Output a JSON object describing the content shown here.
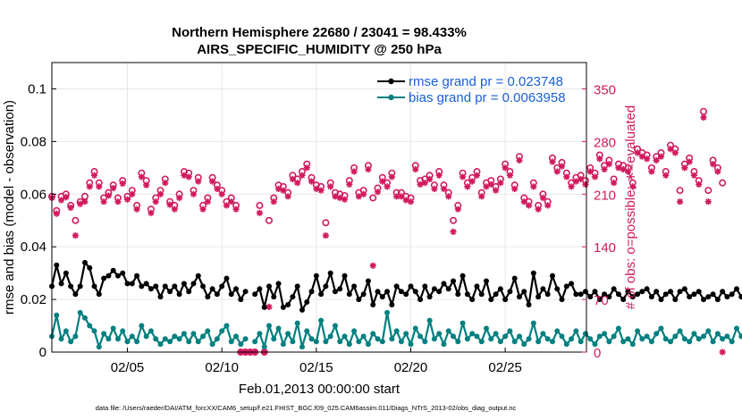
{
  "chart_data": {
    "type": "line",
    "title": "Northern Hemisphere 22680 / 23041 = 98.433%",
    "subtitle": "AIRS_SPECIFIC_HUMIDITY @ 250 hPa",
    "xlabel": "Feb.01,2013 00:00:00 start",
    "ylabel_left": "rmse and bias (model - observation)",
    "ylabel_right": "# of obs: o=possible; ∗=evaluated",
    "footnote": "data file: /Users/raeder/DAI/ATM_forcXX/CAM6_setup/f.e21.FHIST_BGC.f09_025.CAM6assim.011/Diags_NTrS_2013-02/obs_diag_output.nc",
    "xlim_days": [
      0,
      28.3
    ],
    "x_ticks": [
      {
        "day": 4,
        "label": "02/05"
      },
      {
        "day": 9,
        "label": "02/10"
      },
      {
        "day": 14,
        "label": "02/15"
      },
      {
        "day": 19,
        "label": "02/20"
      },
      {
        "day": 24,
        "label": "02/25"
      }
    ],
    "ylim_left": [
      0,
      0.11
    ],
    "y_ticks_left": [
      {
        "value": 0,
        "label": "0"
      },
      {
        "value": 0.02,
        "label": "0.02"
      },
      {
        "value": 0.04,
        "label": "0.04"
      },
      {
        "value": 0.06,
        "label": "0.06"
      },
      {
        "value": 0.08,
        "label": "0.08"
      },
      {
        "value": 0.1,
        "label": "0.1"
      }
    ],
    "ylim_right": [
      0,
      385
    ],
    "y_ticks_right": [
      {
        "value": 0,
        "label": "0"
      },
      {
        "value": 70,
        "label": "70"
      },
      {
        "value": 140,
        "label": "140"
      },
      {
        "value": 210,
        "label": "210"
      },
      {
        "value": 280,
        "label": "280"
      },
      {
        "value": 350,
        "label": "350"
      }
    ],
    "grid": true,
    "legend_position": "top-right",
    "colors": {
      "rmse": "#000000",
      "bias": "#00807f",
      "obs": "#d11a5e",
      "legend_text": "#1a5fd6",
      "grid": "#e6e6e6"
    },
    "series": [
      {
        "name": "rmse grand pr = 0.023748",
        "key": "rmse",
        "axis": "left",
        "segments": [
          {
            "x0": 0.0,
            "dx": 0.25,
            "values": [
              0.025,
              0.033,
              0.026,
              0.03,
              0.025,
              0.022,
              0.025,
              0.034,
              0.032,
              0.025,
              0.022,
              0.028,
              0.029,
              0.031,
              0.029,
              0.03,
              0.026,
              0.026,
              0.029,
              0.025,
              0.026,
              0.024,
              0.025,
              0.021,
              0.025,
              0.023,
              0.025,
              0.022,
              0.026,
              0.023,
              0.026,
              0.029,
              0.025,
              0.021,
              0.024,
              0.022,
              0.025,
              0.028,
              0.022,
              0.024,
              0.02,
              0.023
            ]
          },
          {
            "x0": 10.75,
            "dx": 0.25,
            "values": [
              0.022,
              0.024,
              0.017,
              0.025,
              0.021,
              0.026,
              0.017,
              0.018,
              0.021,
              0.025,
              0.016,
              0.019,
              0.023,
              0.029,
              0.022,
              0.025,
              0.03,
              0.023,
              0.024,
              0.029,
              0.022,
              0.025,
              0.02,
              0.022,
              0.027,
              0.018,
              0.023,
              0.021,
              0.023,
              0.018,
              0.025,
              0.023,
              0.022,
              0.025,
              0.023,
              0.02,
              0.025,
              0.021,
              0.024,
              0.023,
              0.026,
              0.024,
              0.027,
              0.022,
              0.029,
              0.022,
              0.02,
              0.025,
              0.022,
              0.027,
              0.02,
              0.022,
              0.024,
              0.02,
              0.023,
              0.028,
              0.021,
              0.023,
              0.018,
              0.03,
              0.021,
              0.024,
              0.022,
              0.029,
              0.024,
              0.02,
              0.025,
              0.026,
              0.022,
              0.022,
              0.023,
              0.021,
              0.023,
              0.02,
              0.022,
              0.021,
              0.024,
              0.022,
              0.02,
              0.023,
              0.021,
              0.022,
              0.023,
              0.024,
              0.021,
              0.023,
              0.02,
              0.022,
              0.023,
              0.02,
              0.023,
              0.024,
              0.021,
              0.022,
              0.023,
              0.02,
              0.021,
              0.022,
              0.02,
              0.023,
              0.021,
              0.022,
              0.024,
              0.021,
              0.023,
              0.022
            ]
          }
        ]
      },
      {
        "name": "bias grand pr = 0.0063958",
        "key": "bias",
        "axis": "left",
        "segments": [
          {
            "x0": 0.0,
            "dx": 0.25,
            "values": [
              0.006,
              0.014,
              0.005,
              0.008,
              0.004,
              0.006,
              0.015,
              0.013,
              0.01,
              0.008,
              0.002,
              0.007,
              0.005,
              0.009,
              0.005,
              0.008,
              0.004,
              0.006,
              0.004,
              0.01,
              0.006,
              0.008,
              0.005,
              0.003,
              0.005,
              0.004,
              0.006,
              0.005,
              0.007,
              0.004,
              0.007,
              0.004,
              0.006,
              0.008,
              0.003,
              0.005,
              0.008,
              0.01,
              0.004,
              0.006,
              0.003,
              0.005
            ]
          },
          {
            "x0": 10.75,
            "dx": 0.25,
            "values": [
              0.004,
              0.007,
              0.002,
              0.01,
              0.005,
              0.009,
              0.003,
              0.007,
              0.004,
              0.011,
              0.002,
              0.008,
              0.005,
              0.004,
              0.012,
              0.004,
              0.006,
              0.01,
              0.004,
              0.006,
              0.003,
              0.008,
              0.004,
              0.006,
              0.003,
              0.007,
              0.005,
              0.004,
              0.015,
              0.005,
              0.008,
              0.004,
              0.007,
              0.003,
              0.009,
              0.006,
              0.004,
              0.012,
              0.005,
              0.007,
              0.003,
              0.008,
              0.006,
              0.004,
              0.011,
              0.005,
              0.007,
              0.006,
              0.004,
              0.009,
              0.005,
              0.007,
              0.004,
              0.006,
              0.008,
              0.004,
              0.006,
              0.003,
              0.005,
              0.011,
              0.004,
              0.007,
              0.005,
              0.004,
              0.008,
              0.006,
              0.003,
              0.005,
              0.008,
              0.004,
              0.007,
              0.005,
              0.003,
              0.006,
              0.007,
              0.004,
              0.006,
              0.009,
              0.004,
              0.005,
              0.003,
              0.008,
              0.005,
              0.006,
              0.004,
              0.007,
              0.009,
              0.005,
              0.004,
              0.006,
              0.008,
              0.005,
              0.004,
              0.007,
              0.005,
              0.006,
              0.008,
              0.004,
              0.007,
              0.005,
              0.006,
              0.004,
              0.009,
              0.006,
              0.004,
              0.003
            ]
          }
        ]
      },
      {
        "name": "obs possible",
        "key": "possible",
        "axis": "right",
        "marker": "circle",
        "x0": 0.0,
        "dx": 0.25,
        "values": [
          207,
          188,
          207,
          210,
          195,
          175,
          200,
          207,
          225,
          240,
          225,
          205,
          212,
          222,
          205,
          228,
          207,
          215,
          195,
          238,
          228,
          190,
          205,
          215,
          230,
          200,
          195,
          210,
          240,
          238,
          215,
          232,
          195,
          205,
          232,
          222,
          215,
          200,
          205,
          195,
          0,
          0,
          0,
          0,
          195,
          0,
          175,
          205,
          222,
          220,
          212,
          235,
          230,
          240,
          250,
          232,
          222,
          220,
          172,
          225,
          212,
          210,
          208,
          228,
          245,
          212,
          215,
          248,
          205,
          218,
          232,
          225,
          238,
          212,
          212,
          207,
          205,
          248,
          228,
          230,
          235,
          222,
          240,
          222,
          212,
          175,
          195,
          238,
          225,
          232,
          240,
          212,
          225,
          228,
          220,
          230,
          250,
          240,
          222,
          260,
          205,
          200,
          225,
          195,
          210,
          200,
          258,
          245,
          252,
          238,
          225,
          232,
          235,
          228,
          245,
          238,
          262,
          248,
          255,
          230,
          250,
          248,
          245,
          225,
          270,
          265,
          262,
          245,
          260,
          265,
          240,
          275,
          270,
          215,
          250,
          258,
          240,
          228,
          320,
          215,
          255,
          245,
          225
        ]
      },
      {
        "name": "obs evaluated",
        "key": "evaluated",
        "axis": "right",
        "marker": "asterisk",
        "x0": 0.0,
        "dx": 0.25,
        "values": [
          205,
          184,
          202,
          206,
          192,
          155,
          197,
          200,
          220,
          235,
          220,
          200,
          208,
          218,
          200,
          224,
          203,
          210,
          190,
          233,
          222,
          185,
          200,
          210,
          225,
          196,
          190,
          205,
          235,
          233,
          210,
          227,
          190,
          200,
          227,
          217,
          210,
          195,
          200,
          190,
          0,
          0,
          0,
          0,
          185,
          0,
          60,
          200,
          217,
          215,
          207,
          230,
          225,
          235,
          245,
          227,
          217,
          215,
          155,
          220,
          207,
          205,
          203,
          223,
          240,
          207,
          210,
          243,
          115,
          213,
          227,
          220,
          233,
          207,
          207,
          202,
          200,
          243,
          223,
          225,
          230,
          217,
          235,
          217,
          207,
          160,
          190,
          233,
          220,
          227,
          235,
          207,
          220,
          223,
          215,
          225,
          245,
          235,
          217,
          255,
          200,
          195,
          220,
          190,
          205,
          195,
          253,
          240,
          247,
          233,
          220,
          227,
          230,
          223,
          240,
          233,
          257,
          243,
          250,
          225,
          245,
          243,
          240,
          220,
          265,
          260,
          257,
          240,
          255,
          260,
          235,
          270,
          265,
          200,
          245,
          253,
          235,
          223,
          312,
          200,
          250,
          240,
          0
        ]
      }
    ]
  }
}
